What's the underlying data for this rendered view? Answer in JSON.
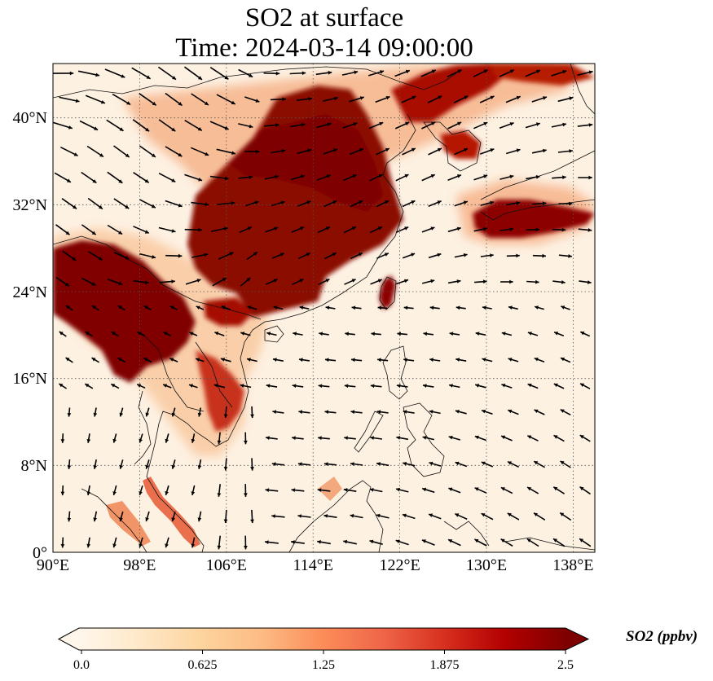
{
  "title": {
    "line1": "SO2 at surface",
    "line2": "Time: 2024-03-14 09:00:00"
  },
  "map": {
    "projection": "PlateCarree",
    "lon_range": [
      90,
      140
    ],
    "lat_range": [
      0,
      45
    ],
    "x_tick_labels": [
      "90°E",
      "98°E",
      "106°E",
      "114°E",
      "122°E",
      "130°E",
      "138°E"
    ],
    "x_tick_values": [
      90,
      98,
      106,
      114,
      122,
      130,
      138
    ],
    "y_tick_labels": [
      "0°",
      "8°N",
      "16°N",
      "24°N",
      "32°N",
      "40°N"
    ],
    "y_tick_values": [
      0,
      8,
      16,
      24,
      32,
      40
    ],
    "gridlines": "dotted",
    "field": "SO2 concentration",
    "overlay": "wind vectors (black arrows)",
    "high_regions": [
      "North China Plain",
      "Sichuan Basin and central China",
      "Myanmar / Yunnan / northern Indochina",
      "Korean peninsula",
      "Southern Japan / East China Sea plume",
      "Taiwan",
      "Northeast China"
    ]
  },
  "colorbar": {
    "label": "SO2 (ppbv)",
    "tick_labels": [
      "0.0",
      "0.625",
      "1.25",
      "1.875",
      "2.5"
    ],
    "tick_values": [
      0.0,
      0.625,
      1.25,
      1.875,
      2.5
    ],
    "range": [
      0.0,
      2.5
    ],
    "extend": "both",
    "colormap": "OrRd",
    "colors": [
      "#fff7ec",
      "#fee8c8",
      "#fdd49e",
      "#fdbb84",
      "#fc8d59",
      "#ef6548",
      "#d7301f",
      "#b30000",
      "#7f0000"
    ]
  }
}
